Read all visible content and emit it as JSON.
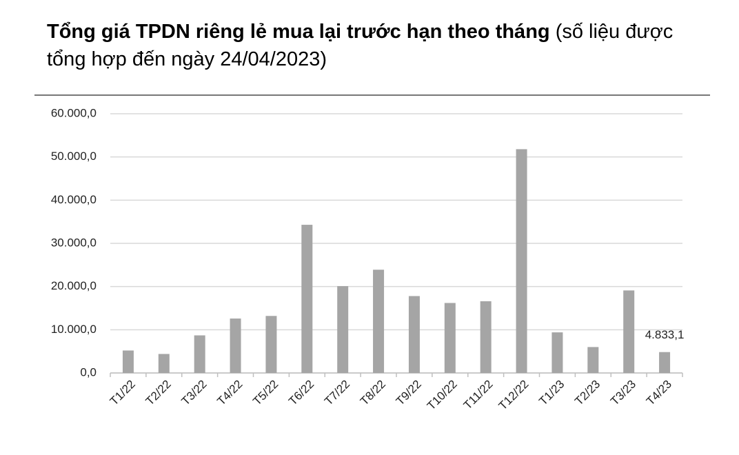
{
  "chart_data": {
    "type": "bar",
    "title": "Tổng giá TPDN riêng lẻ mua lại trước hạn theo tháng",
    "subtitle": "(số liệu được tổng hợp đến ngày 24/04/2023)",
    "categories": [
      "T1/22",
      "T2/22",
      "T3/22",
      "T4/22",
      "T5/22",
      "T6/22",
      "T7/22",
      "T8/22",
      "T9/22",
      "T10/22",
      "T11/22",
      "T12/22",
      "T1/23",
      "T2/23",
      "T3/23",
      "T4/23"
    ],
    "values": [
      5200,
      4400,
      8700,
      12600,
      13200,
      34300,
      20100,
      23900,
      17800,
      16200,
      16600,
      51800,
      9400,
      6000,
      19100,
      4833.1
    ],
    "value_labels": [
      null,
      null,
      null,
      null,
      null,
      null,
      null,
      null,
      null,
      null,
      null,
      null,
      null,
      null,
      null,
      "4.833,1"
    ],
    "color": "#a5a5a5",
    "ylim": [
      0,
      60000
    ],
    "yticks": [
      {
        "value": 0,
        "label": "0,0"
      },
      {
        "value": 10000,
        "label": "10.000,0"
      },
      {
        "value": 20000,
        "label": "20.000,0"
      },
      {
        "value": 30000,
        "label": "30.000,0"
      },
      {
        "value": 40000,
        "label": "40.000,0"
      },
      {
        "value": 50000,
        "label": "50.000,0"
      },
      {
        "value": 60000,
        "label": "60.000,0"
      }
    ],
    "grid": true
  }
}
